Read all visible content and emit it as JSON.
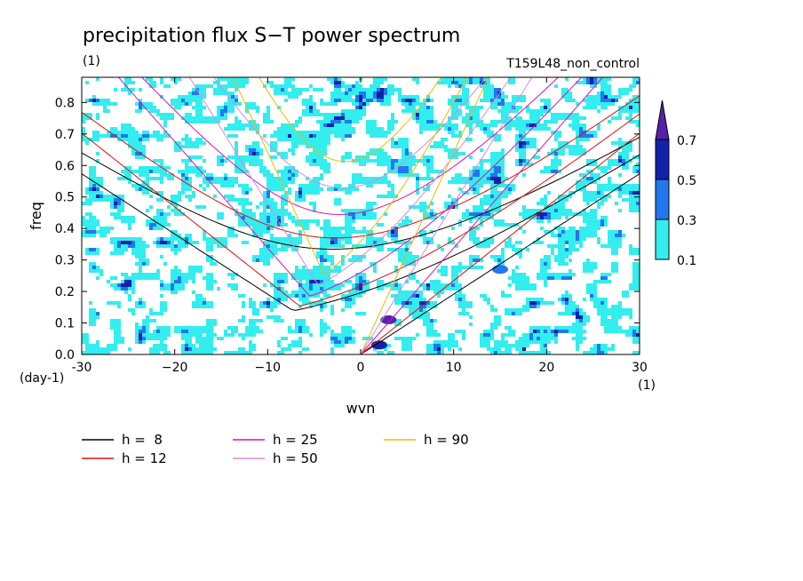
{
  "chart_data": {
    "type": "heatmap",
    "title": "precipitation flux S−T power spectrum",
    "title_units": "(1)",
    "subtitle_right": "T159L48_non_control",
    "xlabel": "wvn",
    "ylabel": "freq",
    "x_units": "(1)",
    "y_units": "(day-1)",
    "xlim": [
      -30,
      30
    ],
    "ylim": [
      0,
      0.88
    ],
    "x_ticks": [
      -30,
      -20,
      -10,
      0,
      10,
      20,
      30
    ],
    "x_tick_labels": [
      "-30",
      "−20",
      "−10",
      "0",
      "10",
      "20",
      "30"
    ],
    "y_ticks": [
      0,
      0.1,
      0.2,
      0.3,
      0.4,
      0.5,
      0.6,
      0.7,
      0.8
    ],
    "y_tick_labels": [
      "0.0",
      "0.1",
      "0.2",
      "0.3",
      "0.4",
      "0.5",
      "0.6",
      "0.7",
      "0.8"
    ],
    "colorbar": {
      "levels": [
        "0.1",
        "0.3",
        "0.5",
        "0.7"
      ],
      "colors": [
        "#33eeee",
        "#2277ee",
        "#1122aa",
        "#5522aa"
      ],
      "extend": "max"
    },
    "dispersion_curves": [
      {
        "label": "h =  8",
        "color": "#000000"
      },
      {
        "label": "h = 12",
        "color": "#dd1111"
      },
      {
        "label": "h = 25",
        "color": "#dd11aa"
      },
      {
        "label": "h = 50",
        "color": "#dd88dd"
      },
      {
        "label": "h = 90",
        "color": "#eebb00"
      }
    ]
  }
}
